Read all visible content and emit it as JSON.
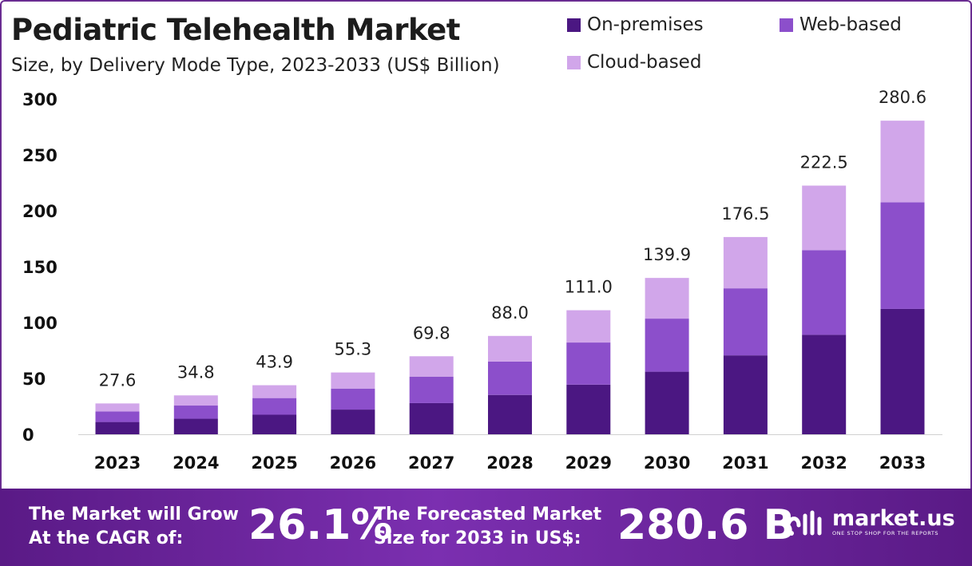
{
  "chart_data": {
    "type": "bar",
    "stacked": true,
    "title": "Pediatric Telehealth Market",
    "subtitle": "Size, by Delivery Mode Type, 2023-2033 (US$ Billion)",
    "categories": [
      "2023",
      "2024",
      "2025",
      "2026",
      "2027",
      "2028",
      "2029",
      "2030",
      "2031",
      "2032",
      "2033"
    ],
    "series": [
      {
        "name": "On-premises",
        "color": "#4b1782",
        "values": [
          11.0,
          13.9,
          17.5,
          22.1,
          27.9,
          35.2,
          44.4,
          56.0,
          70.6,
          89.0,
          112.2
        ]
      },
      {
        "name": "Web-based",
        "color": "#8c4fcb",
        "values": [
          9.4,
          11.8,
          14.9,
          18.8,
          23.7,
          29.9,
          37.7,
          47.5,
          60.0,
          75.7,
          95.4
        ]
      },
      {
        "name": "Cloud-based",
        "color": "#d1a6ea",
        "values": [
          7.2,
          9.1,
          11.5,
          14.4,
          18.2,
          22.9,
          28.9,
          36.4,
          45.9,
          57.8,
          73.0
        ]
      }
    ],
    "totals": [
      "27.6",
      "34.8",
      "43.9",
      "55.3",
      "69.8",
      "88.0",
      "111.0",
      "139.9",
      "176.5",
      "222.5",
      "280.6"
    ],
    "ylim": [
      0,
      300
    ],
    "yticks": [
      0,
      50,
      100,
      150,
      200,
      250,
      300
    ],
    "grid": false,
    "legend_position": "top-right"
  },
  "footer": {
    "cagr_line1": "The Market will Grow",
    "cagr_line2": "At the CAGR of:",
    "cagr_value": "26.1%",
    "forecast_line1": "The Forecasted Market",
    "forecast_line2": "Size for 2033 in US$:",
    "forecast_value": "280.6 B",
    "brand_name": "market.us",
    "brand_tagline": "ONE STOP SHOP FOR THE REPORTS"
  }
}
